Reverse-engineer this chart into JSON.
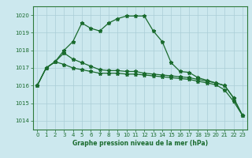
{
  "xlabel": "Graphe pression niveau de la mer (hPa)",
  "background_color": "#cce8ee",
  "grid_color": "#aacdd6",
  "line_color": "#1a6b2e",
  "ylim": [
    1013.5,
    1020.5
  ],
  "xlim": [
    -0.5,
    23.5
  ],
  "yticks": [
    1014,
    1015,
    1016,
    1017,
    1018,
    1019,
    1020
  ],
  "xticks": [
    0,
    1,
    2,
    3,
    4,
    5,
    6,
    7,
    8,
    9,
    10,
    11,
    12,
    13,
    14,
    15,
    16,
    17,
    18,
    19,
    20,
    21,
    22,
    23
  ],
  "series1_x": [
    0,
    1,
    2,
    3,
    4,
    5,
    6,
    7,
    8,
    9,
    10,
    11,
    12,
    13,
    14,
    15,
    16,
    17,
    18,
    19,
    20,
    21,
    22,
    23
  ],
  "series1_y": [
    1016.0,
    1017.0,
    1017.35,
    1018.0,
    1018.5,
    1019.55,
    1019.25,
    1019.1,
    1019.55,
    1019.8,
    1019.95,
    1019.95,
    1019.95,
    1019.1,
    1018.5,
    1017.3,
    1016.8,
    1016.75,
    1016.45,
    1016.3,
    1016.15,
    1016.0,
    1015.3,
    1014.3
  ],
  "series2_x": [
    0,
    1,
    2,
    3,
    4,
    5,
    6,
    7,
    8,
    9,
    10,
    11,
    12,
    13,
    14,
    15,
    16,
    17,
    18,
    19,
    20,
    21,
    22,
    23
  ],
  "series2_y": [
    1016.0,
    1017.0,
    1017.35,
    1017.85,
    1017.5,
    1017.3,
    1017.1,
    1016.9,
    1016.85,
    1016.85,
    1016.8,
    1016.8,
    1016.7,
    1016.65,
    1016.6,
    1016.55,
    1016.5,
    1016.45,
    1016.35,
    1016.25,
    1016.15,
    1016.0,
    1015.3,
    1014.3
  ],
  "series3_x": [
    0,
    1,
    2,
    3,
    4,
    5,
    6,
    7,
    8,
    9,
    10,
    11,
    12,
    13,
    14,
    15,
    16,
    17,
    18,
    19,
    20,
    21,
    22,
    23
  ],
  "series3_y": [
    1016.0,
    1017.0,
    1017.35,
    1017.2,
    1017.0,
    1016.9,
    1016.8,
    1016.7,
    1016.7,
    1016.7,
    1016.65,
    1016.65,
    1016.6,
    1016.55,
    1016.5,
    1016.45,
    1016.4,
    1016.35,
    1016.25,
    1016.15,
    1016.05,
    1015.75,
    1015.1,
    1014.3
  ],
  "tick_fontsize": 5,
  "xlabel_fontsize": 5.5,
  "spine_color": "#2d7a3a"
}
